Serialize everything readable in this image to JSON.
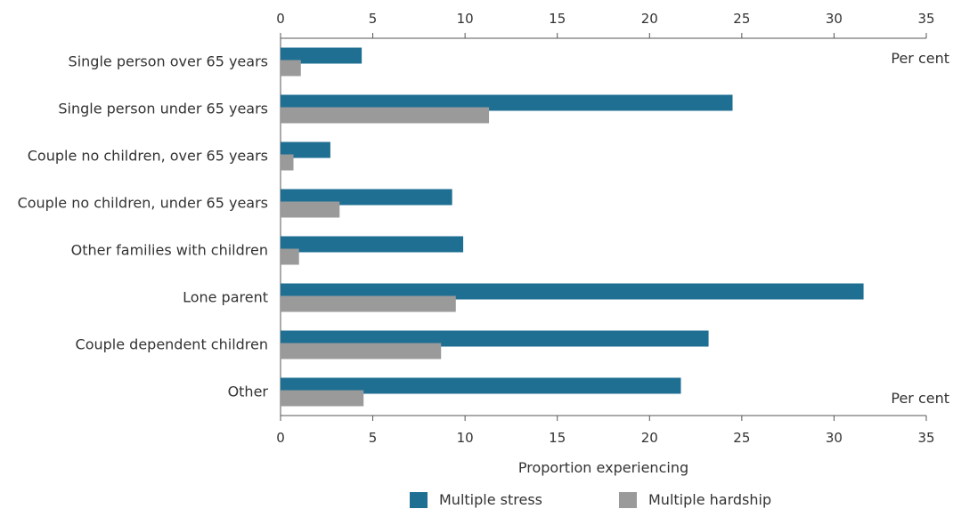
{
  "chart_data": {
    "type": "bar",
    "orientation": "horizontal",
    "categories": [
      "Single person over 65 years",
      "Single person under 65 years",
      "Couple no children, over 65 years",
      "Couple no children, under 65 years",
      "Other families with children",
      "Lone parent",
      "Couple dependent children",
      "Other"
    ],
    "series": [
      {
        "name": "Multiple stress",
        "color": "#1f6f93",
        "values": [
          4.4,
          24.5,
          2.7,
          9.3,
          9.9,
          31.6,
          23.2,
          21.7
        ]
      },
      {
        "name": "Multiple hardship",
        "color": "#9a9a9a",
        "values": [
          1.1,
          11.3,
          0.7,
          3.2,
          1.0,
          9.5,
          8.7,
          4.5
        ]
      }
    ],
    "xlabel": "Proportion experiencing",
    "unit_label": "Per cent",
    "xlim": [
      0,
      35
    ],
    "xticks": [
      0,
      5,
      10,
      15,
      20,
      25,
      30,
      35
    ],
    "grid": false,
    "legend_position": "bottom"
  }
}
